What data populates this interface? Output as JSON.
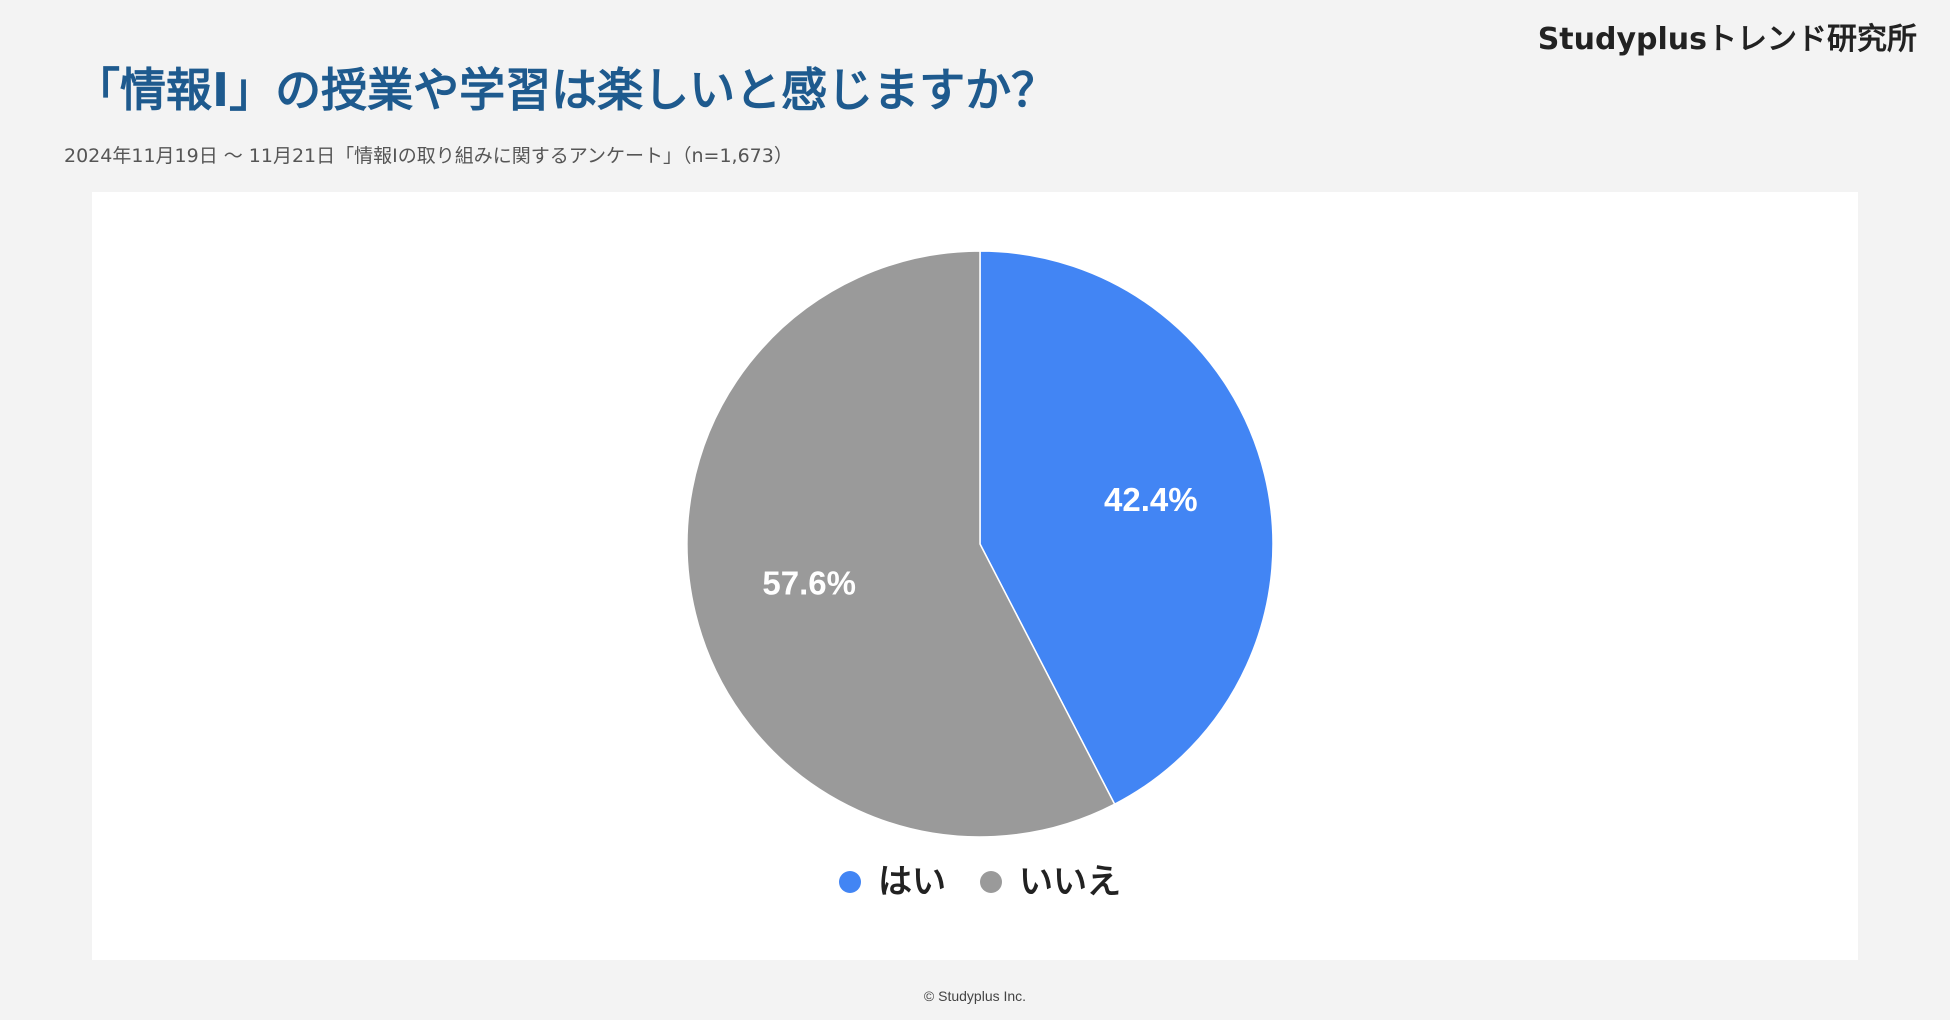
{
  "brand": "Studyplusトレンド研究所",
  "title": "「情報Ⅰ」の授業や学習は楽しいと感じますか？",
  "subtitle": "2024年11月19日 〜 11月21日「情報Ⅰの取り組みに関するアンケート」（n=1,673）",
  "copyright": "© Studyplus Inc.",
  "chart_data": {
    "type": "pie",
    "categories": [
      "はい",
      "いいえ"
    ],
    "values": [
      42.4,
      57.6
    ],
    "value_labels": [
      "42.4%",
      "57.6%"
    ],
    "colors": [
      "#4285f4",
      "#9a9a9a"
    ],
    "start_angle": "12 o'clock",
    "direction": "clockwise",
    "legend_position": "bottom-center",
    "label_color": "#ffffff"
  }
}
